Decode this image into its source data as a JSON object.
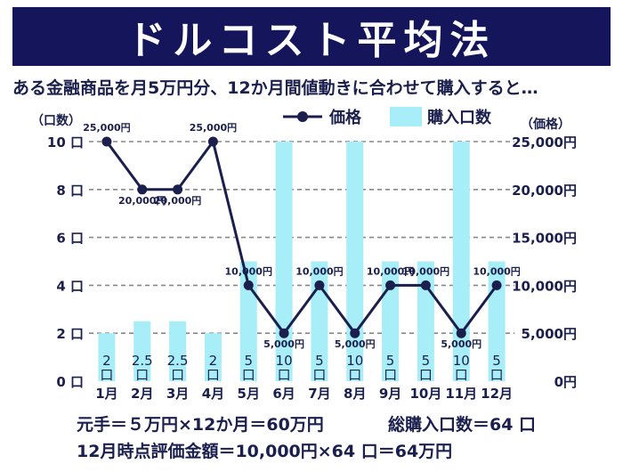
{
  "header": {
    "title": "ドルコスト平均法",
    "subtitle": "ある金融商品を月5万円分、12か月間値動きに合わせて購入すると…"
  },
  "colors": {
    "banner": "#14155a",
    "line": "#1a1f4d",
    "bar": "#a8eef8",
    "grid": "#888888",
    "text": "#1a1f4d"
  },
  "chart_data": {
    "type": "bar+line",
    "categories": [
      "1月",
      "2月",
      "3月",
      "4月",
      "5月",
      "6月",
      "7月",
      "8月",
      "9月",
      "10月",
      "11月",
      "12月"
    ],
    "series": [
      {
        "name": "価格",
        "type": "line",
        "axis": "right",
        "values": [
          25000,
          20000,
          20000,
          25000,
          10000,
          5000,
          10000,
          5000,
          10000,
          10000,
          5000,
          10000
        ],
        "labels": [
          "25,000円",
          "20,000円",
          "20,000円",
          "25,000円",
          "10,000円",
          "5,000円",
          "10,000円",
          "5,000円",
          "10,000円",
          "10,000円",
          "5,000円",
          "10,000円"
        ]
      },
      {
        "name": "購入口数",
        "type": "bar",
        "axis": "left",
        "values": [
          2,
          2.5,
          2.5,
          2,
          5,
          10,
          5,
          10,
          5,
          5,
          10,
          5
        ],
        "labels": [
          "2口",
          "2.5口",
          "2.5口",
          "2口",
          "5口",
          "10口",
          "5口",
          "10口",
          "5口",
          "5口",
          "10口",
          "5口"
        ]
      }
    ],
    "left_axis": {
      "title": "（口数）",
      "ylim": [
        0,
        10
      ],
      "ticks": [
        0,
        2,
        4,
        6,
        8,
        10
      ],
      "tick_labels": [
        "0 口",
        "2 口",
        "4 口",
        "6 口",
        "8 口",
        "10 口"
      ]
    },
    "right_axis": {
      "title": "（価格）",
      "ylim": [
        0,
        25000
      ],
      "ticks": [
        0,
        5000,
        10000,
        15000,
        20000,
        25000
      ],
      "tick_labels": [
        "0円",
        "5,000円",
        "10,000円",
        "15,000円",
        "20,000円",
        "25,000円"
      ]
    },
    "grid": true,
    "legend": "top-center"
  },
  "footer": {
    "line1": "元手＝５万円×12か月＝60万円",
    "line1_right": "総購入口数＝64 口",
    "line2": "12月時点評価金額＝10,000円×64 口＝64万円"
  }
}
